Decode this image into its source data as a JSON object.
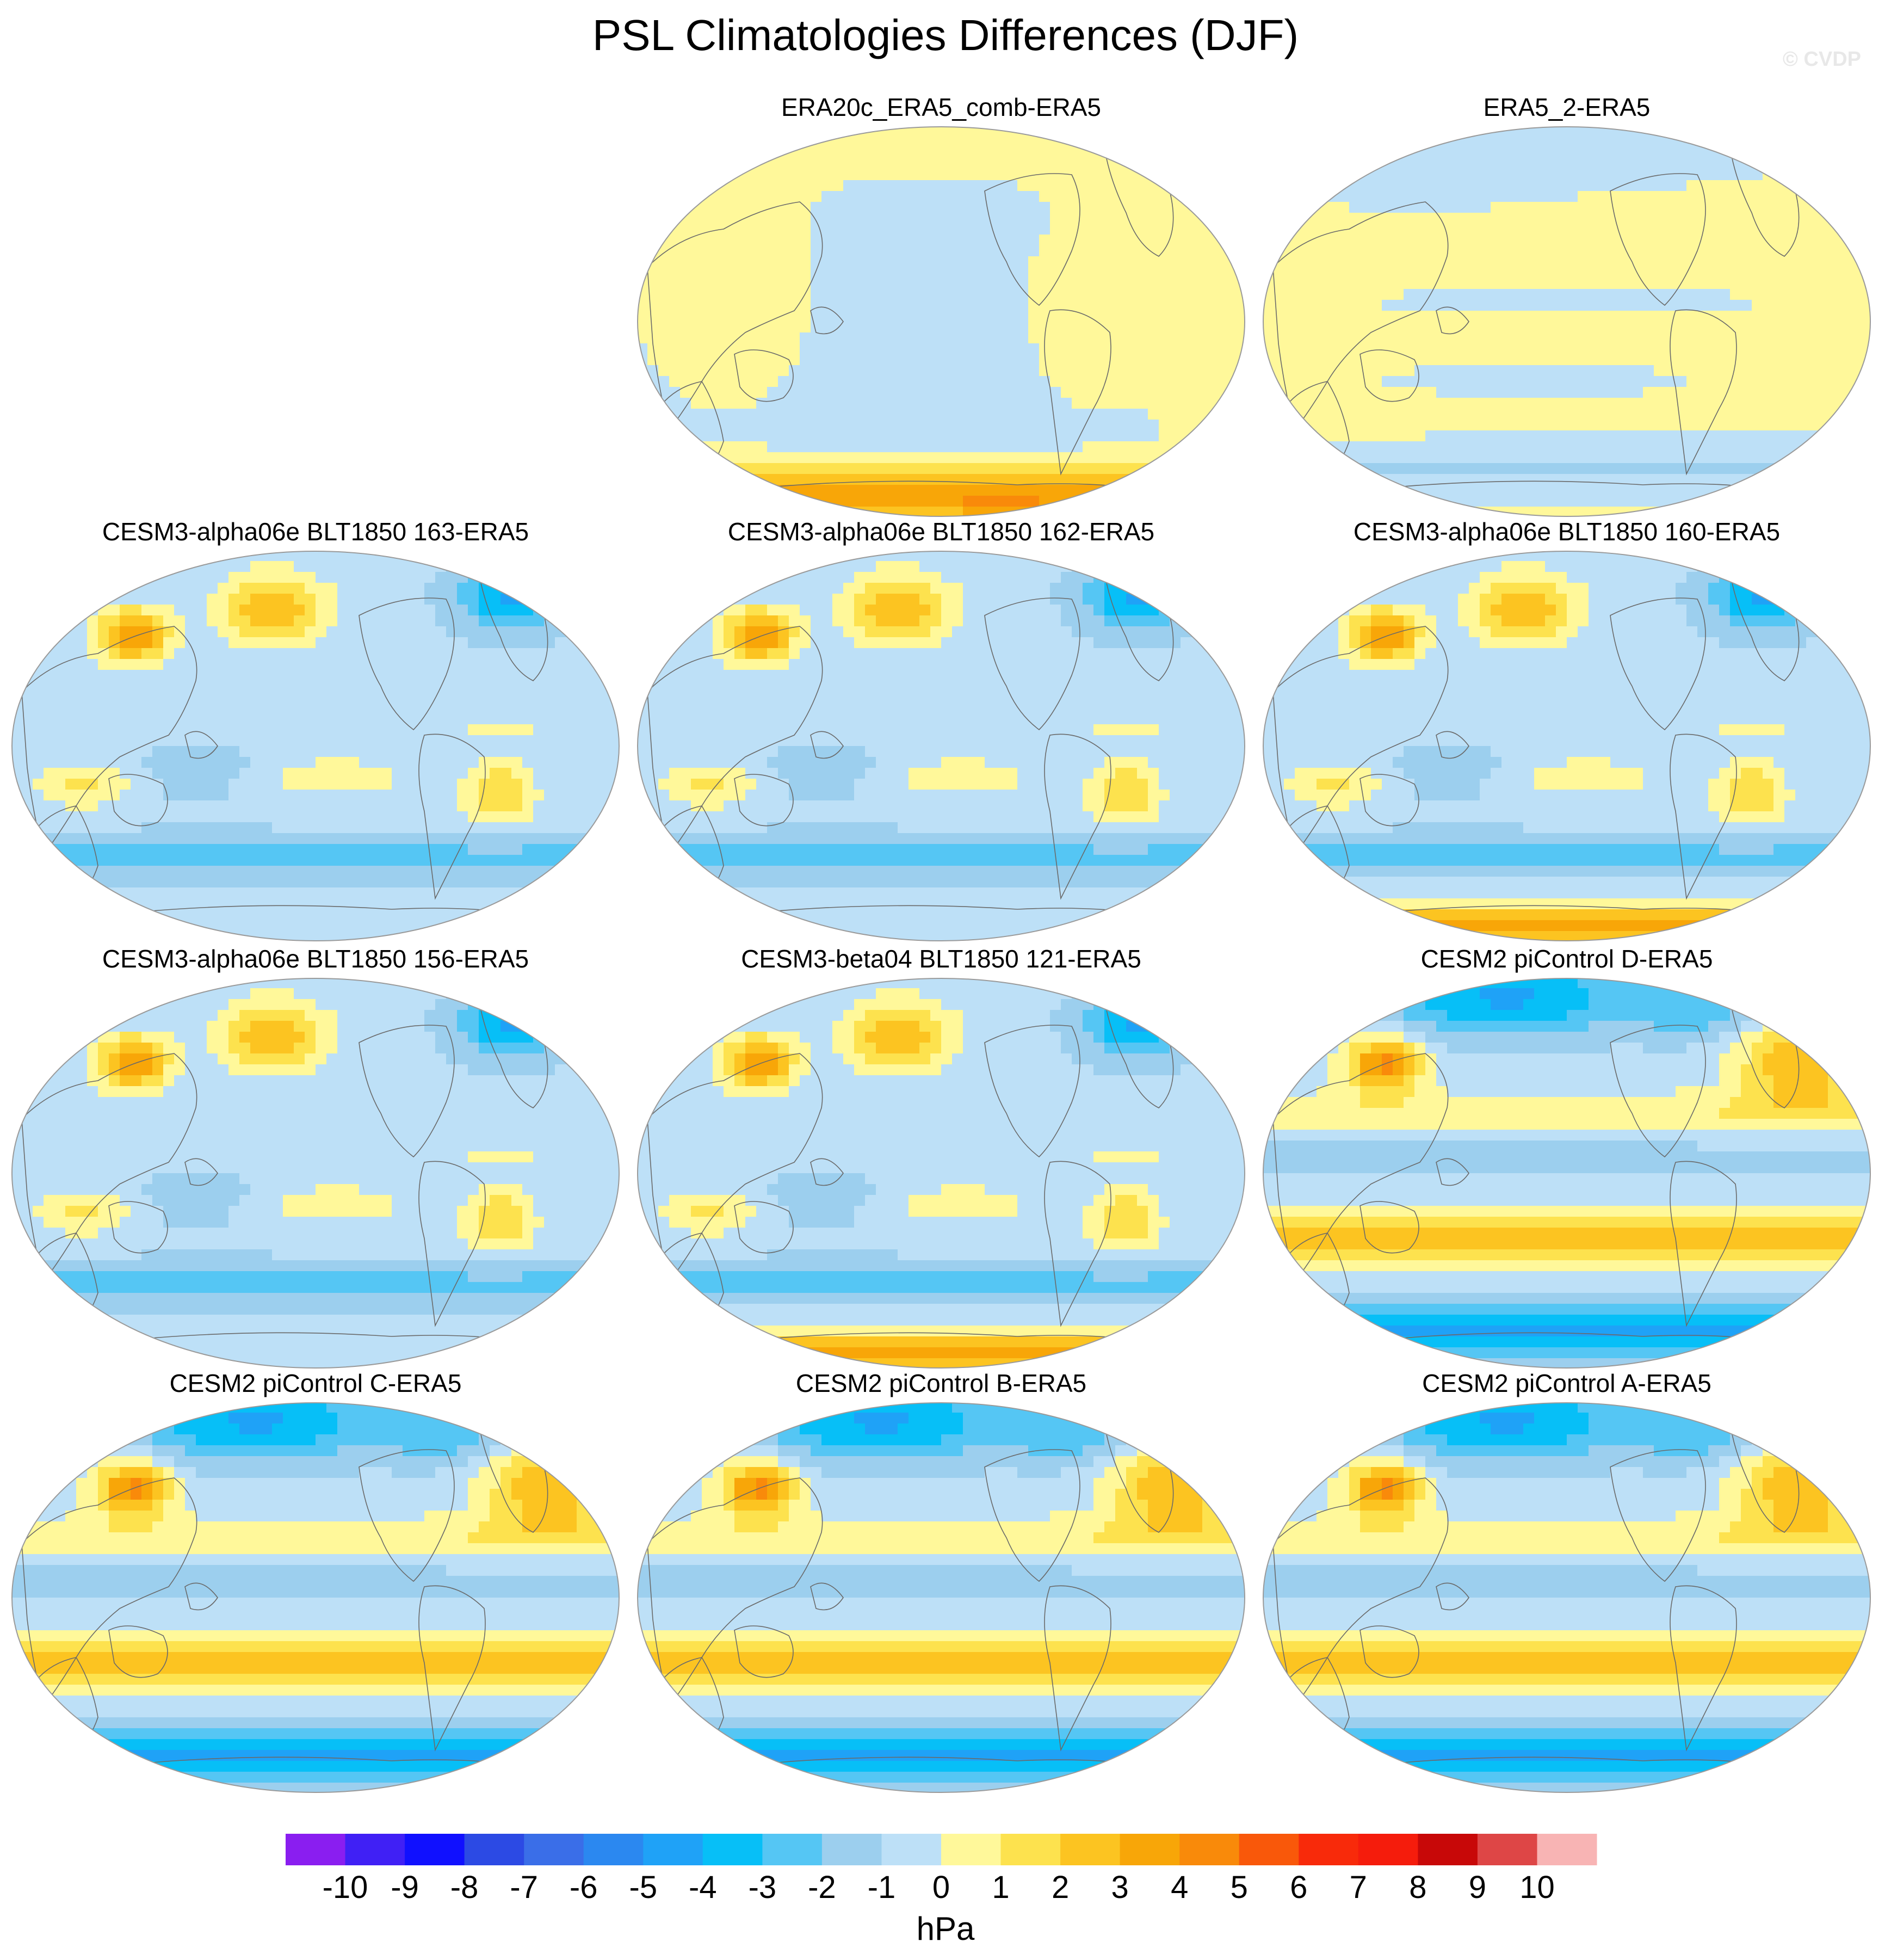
{
  "title": "PSL Climatologies Differences (DJF)",
  "watermark": "© CVDP",
  "chart_data": {
    "type": "contour-map-panels",
    "title": "PSL Climatologies Differences (DJF)",
    "variable": "PSL",
    "season": "DJF",
    "units": "hPa",
    "projection": "robinson",
    "colorbar": {
      "tick_labels": [
        "-10",
        "-9",
        "-8",
        "-7",
        "-6",
        "-5",
        "-4",
        "-3",
        "-2",
        "-1",
        "0",
        "1",
        "2",
        "3",
        "4",
        "5",
        "6",
        "7",
        "8",
        "9",
        "10"
      ],
      "levels": [
        -10,
        -9,
        -8,
        -7,
        -6,
        -5,
        -4,
        -3,
        -2,
        -1,
        0,
        1,
        2,
        3,
        4,
        5,
        6,
        7,
        8,
        9,
        10
      ],
      "colors": [
        "#8a1ef0",
        "#4020f5",
        "#1010ff",
        "#2c4ae4",
        "#3a6ee8",
        "#2b88f0",
        "#1fa2f7",
        "#07bff7",
        "#55c6f4",
        "#9ccfee",
        "#bde0f7",
        "#fff89a",
        "#fde24e",
        "#fcc421",
        "#f8a608",
        "#f98a0a",
        "#f9580a",
        "#f82a0a",
        "#f51c0c",
        "#c80808",
        "#de4646",
        "#f8b4b4"
      ]
    },
    "panels": [
      {
        "title": "ERA20c_ERA5_comb-ERA5",
        "pattern": "era20c"
      },
      {
        "title": "ERA5_2-ERA5",
        "pattern": "era5_2"
      },
      {
        "title": "CESM3-alpha06e BLT1850 163-ERA5",
        "pattern": "cesm3"
      },
      {
        "title": "CESM3-alpha06e BLT1850 162-ERA5",
        "pattern": "cesm3"
      },
      {
        "title": "CESM3-alpha06e BLT1850 160-ERA5",
        "pattern": "cesm3b"
      },
      {
        "title": "CESM3-alpha06e BLT1850 156-ERA5",
        "pattern": "cesm3"
      },
      {
        "title": "CESM3-beta04 BLT1850 121-ERA5",
        "pattern": "cesm3b"
      },
      {
        "title": "CESM2 piControl D-ERA5",
        "pattern": "cesm2"
      },
      {
        "title": "CESM2 piControl C-ERA5",
        "pattern": "cesm2"
      },
      {
        "title": "CESM2 piControl B-ERA5",
        "pattern": "cesm2"
      },
      {
        "title": "CESM2 piControl A-ERA5",
        "pattern": "cesm2"
      }
    ]
  }
}
